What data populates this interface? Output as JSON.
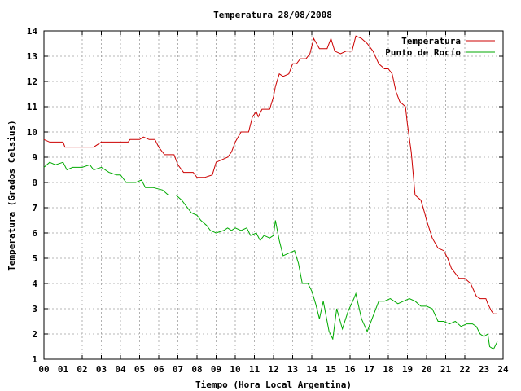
{
  "chart_data": {
    "type": "line",
    "title": "Temperatura 28/08/2008",
    "xlabel": "Tiempo (Hora Local Argentina)",
    "ylabel": "Temperatura (Grados Celsius)",
    "xlim": [
      0,
      24
    ],
    "ylim": [
      1,
      14
    ],
    "x_ticks": [
      "00",
      "01",
      "02",
      "03",
      "04",
      "05",
      "06",
      "07",
      "08",
      "09",
      "10",
      "11",
      "12",
      "13",
      "14",
      "15",
      "16",
      "17",
      "18",
      "19",
      "20",
      "21",
      "22",
      "23",
      "24"
    ],
    "y_ticks": [
      "1",
      "2",
      "3",
      "4",
      "5",
      "6",
      "7",
      "8",
      "9",
      "10",
      "11",
      "12",
      "13",
      "14"
    ],
    "grid": true,
    "legend_position": "top-right",
    "series": [
      {
        "name": "Temperatura",
        "color": "#cc0000",
        "points": [
          [
            0.0,
            9.7
          ],
          [
            0.3,
            9.6
          ],
          [
            0.6,
            9.6
          ],
          [
            1.0,
            9.6
          ],
          [
            1.1,
            9.4
          ],
          [
            1.5,
            9.4
          ],
          [
            2.0,
            9.4
          ],
          [
            2.6,
            9.4
          ],
          [
            3.0,
            9.6
          ],
          [
            3.5,
            9.6
          ],
          [
            4.0,
            9.6
          ],
          [
            4.4,
            9.6
          ],
          [
            4.5,
            9.7
          ],
          [
            5.0,
            9.7
          ],
          [
            5.2,
            9.8
          ],
          [
            5.5,
            9.7
          ],
          [
            5.8,
            9.7
          ],
          [
            6.0,
            9.4
          ],
          [
            6.3,
            9.1
          ],
          [
            6.8,
            9.1
          ],
          [
            7.0,
            8.7
          ],
          [
            7.3,
            8.4
          ],
          [
            7.8,
            8.4
          ],
          [
            8.0,
            8.2
          ],
          [
            8.4,
            8.2
          ],
          [
            8.8,
            8.3
          ],
          [
            9.0,
            8.8
          ],
          [
            9.3,
            8.9
          ],
          [
            9.6,
            9.0
          ],
          [
            9.8,
            9.2
          ],
          [
            10.0,
            9.6
          ],
          [
            10.3,
            10.0
          ],
          [
            10.7,
            10.0
          ],
          [
            10.9,
            10.6
          ],
          [
            11.1,
            10.8
          ],
          [
            11.2,
            10.6
          ],
          [
            11.4,
            10.9
          ],
          [
            11.8,
            10.9
          ],
          [
            12.0,
            11.4
          ],
          [
            12.1,
            11.8
          ],
          [
            12.3,
            12.3
          ],
          [
            12.5,
            12.2
          ],
          [
            12.8,
            12.3
          ],
          [
            13.0,
            12.7
          ],
          [
            13.2,
            12.7
          ],
          [
            13.4,
            12.9
          ],
          [
            13.7,
            12.9
          ],
          [
            13.9,
            13.1
          ],
          [
            14.1,
            13.7
          ],
          [
            14.4,
            13.3
          ],
          [
            14.8,
            13.3
          ],
          [
            15.0,
            13.7
          ],
          [
            15.2,
            13.2
          ],
          [
            15.5,
            13.1
          ],
          [
            15.8,
            13.2
          ],
          [
            16.1,
            13.2
          ],
          [
            16.3,
            13.8
          ],
          [
            16.6,
            13.7
          ],
          [
            16.9,
            13.5
          ],
          [
            17.2,
            13.2
          ],
          [
            17.5,
            12.7
          ],
          [
            17.8,
            12.5
          ],
          [
            18.0,
            12.5
          ],
          [
            18.2,
            12.3
          ],
          [
            18.4,
            11.6
          ],
          [
            18.6,
            11.2
          ],
          [
            18.9,
            11.0
          ],
          [
            19.0,
            10.3
          ],
          [
            19.2,
            9.2
          ],
          [
            19.4,
            7.5
          ],
          [
            19.7,
            7.3
          ],
          [
            19.9,
            6.8
          ],
          [
            20.0,
            6.5
          ],
          [
            20.3,
            5.8
          ],
          [
            20.6,
            5.4
          ],
          [
            20.9,
            5.3
          ],
          [
            21.1,
            5.0
          ],
          [
            21.3,
            4.6
          ],
          [
            21.5,
            4.4
          ],
          [
            21.7,
            4.2
          ],
          [
            22.0,
            4.2
          ],
          [
            22.3,
            4.0
          ],
          [
            22.6,
            3.5
          ],
          [
            22.8,
            3.4
          ],
          [
            23.1,
            3.4
          ],
          [
            23.2,
            3.2
          ],
          [
            23.4,
            2.9
          ],
          [
            23.5,
            2.8
          ],
          [
            23.7,
            2.8
          ]
        ]
      },
      {
        "name": "Punto de Rocío",
        "color": "#00aa00",
        "points": [
          [
            0.0,
            8.6
          ],
          [
            0.3,
            8.8
          ],
          [
            0.6,
            8.7
          ],
          [
            1.0,
            8.8
          ],
          [
            1.2,
            8.5
          ],
          [
            1.5,
            8.6
          ],
          [
            2.0,
            8.6
          ],
          [
            2.4,
            8.7
          ],
          [
            2.6,
            8.5
          ],
          [
            3.0,
            8.6
          ],
          [
            3.4,
            8.4
          ],
          [
            3.8,
            8.3
          ],
          [
            4.0,
            8.3
          ],
          [
            4.3,
            8.0
          ],
          [
            4.8,
            8.0
          ],
          [
            5.1,
            8.1
          ],
          [
            5.3,
            7.8
          ],
          [
            5.7,
            7.8
          ],
          [
            6.2,
            7.7
          ],
          [
            6.5,
            7.5
          ],
          [
            6.9,
            7.5
          ],
          [
            7.2,
            7.3
          ],
          [
            7.5,
            7.0
          ],
          [
            7.7,
            6.8
          ],
          [
            8.0,
            6.7
          ],
          [
            8.2,
            6.5
          ],
          [
            8.5,
            6.3
          ],
          [
            8.7,
            6.1
          ],
          [
            9.0,
            6.0
          ],
          [
            9.4,
            6.1
          ],
          [
            9.6,
            6.2
          ],
          [
            9.8,
            6.1
          ],
          [
            10.0,
            6.2
          ],
          [
            10.3,
            6.1
          ],
          [
            10.6,
            6.2
          ],
          [
            10.8,
            5.9
          ],
          [
            11.1,
            6.0
          ],
          [
            11.3,
            5.7
          ],
          [
            11.5,
            5.9
          ],
          [
            11.8,
            5.8
          ],
          [
            12.0,
            5.9
          ],
          [
            12.1,
            6.5
          ],
          [
            12.3,
            5.7
          ],
          [
            12.5,
            5.1
          ],
          [
            12.8,
            5.2
          ],
          [
            13.1,
            5.3
          ],
          [
            13.3,
            4.8
          ],
          [
            13.5,
            4.0
          ],
          [
            13.8,
            4.0
          ],
          [
            14.0,
            3.7
          ],
          [
            14.2,
            3.2
          ],
          [
            14.4,
            2.6
          ],
          [
            14.6,
            3.3
          ],
          [
            14.9,
            2.1
          ],
          [
            15.1,
            1.8
          ],
          [
            15.3,
            3.0
          ],
          [
            15.6,
            2.2
          ],
          [
            15.9,
            2.9
          ],
          [
            16.2,
            3.4
          ],
          [
            16.3,
            3.6
          ],
          [
            16.6,
            2.6
          ],
          [
            16.9,
            2.1
          ],
          [
            17.2,
            2.7
          ],
          [
            17.5,
            3.3
          ],
          [
            17.8,
            3.3
          ],
          [
            18.1,
            3.4
          ],
          [
            18.5,
            3.2
          ],
          [
            18.8,
            3.3
          ],
          [
            19.1,
            3.4
          ],
          [
            19.4,
            3.3
          ],
          [
            19.7,
            3.1
          ],
          [
            20.0,
            3.1
          ],
          [
            20.3,
            3.0
          ],
          [
            20.6,
            2.5
          ],
          [
            20.9,
            2.5
          ],
          [
            21.2,
            2.4
          ],
          [
            21.5,
            2.5
          ],
          [
            21.8,
            2.3
          ],
          [
            22.1,
            2.4
          ],
          [
            22.4,
            2.4
          ],
          [
            22.6,
            2.3
          ],
          [
            22.8,
            2.0
          ],
          [
            23.0,
            1.9
          ],
          [
            23.2,
            2.0
          ],
          [
            23.3,
            1.5
          ],
          [
            23.5,
            1.4
          ],
          [
            23.7,
            1.7
          ]
        ]
      }
    ]
  }
}
